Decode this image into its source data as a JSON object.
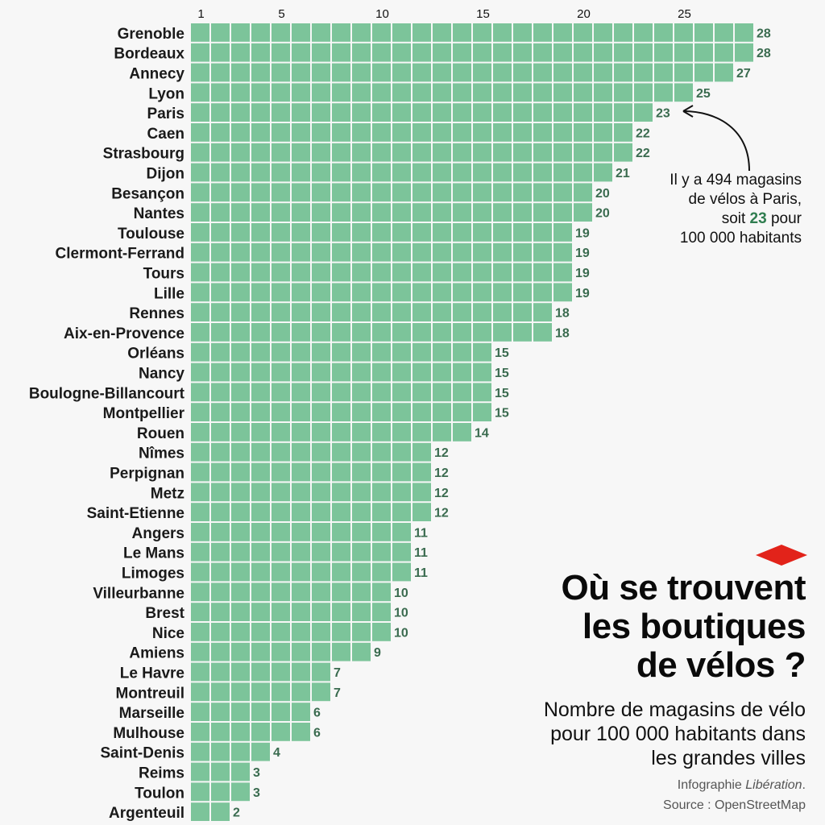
{
  "chart_data": {
    "type": "bar",
    "orientation": "horizontal",
    "unit_grid": true,
    "categories": [
      "Grenoble",
      "Bordeaux",
      "Annecy",
      "Lyon",
      "Paris",
      "Caen",
      "Strasbourg",
      "Dijon",
      "Besançon",
      "Nantes",
      "Toulouse",
      "Clermont-Ferrand",
      "Tours",
      "Lille",
      "Rennes",
      "Aix-en-Provence",
      "Orléans",
      "Nancy",
      "Boulogne-Billancourt",
      "Montpellier",
      "Rouen",
      "Nîmes",
      "Perpignan",
      "Metz",
      "Saint-Etienne",
      "Angers",
      "Le Mans",
      "Limoges",
      "Villeurbanne",
      "Brest",
      "Nice",
      "Amiens",
      "Le Havre",
      "Montreuil",
      "Marseille",
      "Mulhouse",
      "Saint-Denis",
      "Reims",
      "Toulon",
      "Argenteuil"
    ],
    "values": [
      28,
      28,
      27,
      25,
      23,
      22,
      22,
      21,
      20,
      20,
      19,
      19,
      19,
      19,
      18,
      18,
      15,
      15,
      15,
      15,
      14,
      12,
      12,
      12,
      12,
      11,
      11,
      11,
      10,
      10,
      10,
      9,
      7,
      7,
      6,
      6,
      4,
      3,
      3,
      2
    ],
    "x_ticks": [
      1,
      5,
      10,
      15,
      20,
      25
    ],
    "xlim": [
      0,
      28
    ],
    "grid": false,
    "legend": "none",
    "bar_color": "#7cc49a",
    "value_label_color": "#3a6b4f"
  },
  "annotation": {
    "line1": "Il y a 494 magasins",
    "line2": "de vélos à Paris,",
    "line3_pre": "soit ",
    "line3_value": "23",
    "line3_post": " pour",
    "line4": "100 000 habitants"
  },
  "title": {
    "line1": "Où se trouvent",
    "line2": "les boutiques",
    "line3": "de vélos ?"
  },
  "subtitle": {
    "line1": "Nombre de magasins de vélo",
    "line2": "pour 100 000 habitants dans",
    "line3": "les grandes villes"
  },
  "credit": {
    "prefix": "Infographie ",
    "publisher": "Libération",
    "suffix": ".",
    "source": "Source : OpenStreetMap"
  },
  "colors": {
    "logo": "#e2231a",
    "accent": "#2f7d4f"
  },
  "icons": {
    "logo": "liberation-diamond-logo",
    "arrow": "curved-arrow-icon"
  }
}
